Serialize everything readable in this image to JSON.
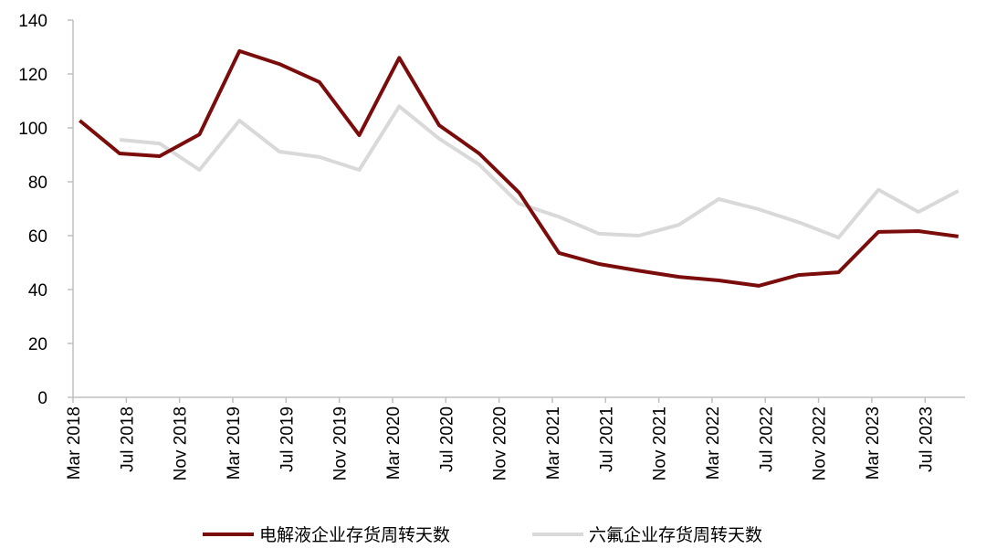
{
  "chart_data": {
    "type": "line",
    "x": [
      "2018-03",
      "2018-06",
      "2018-09",
      "2018-12",
      "2019-03",
      "2019-06",
      "2019-09",
      "2019-12",
      "2020-03",
      "2020-06",
      "2020-09",
      "2020-12",
      "2021-03",
      "2021-06",
      "2021-09",
      "2021-12",
      "2022-03",
      "2022-06",
      "2022-09",
      "2022-12",
      "2023-03",
      "2023-06",
      "2023-09"
    ],
    "series": [
      {
        "name": "电解液企业存货周转天数",
        "color": "#7b0c0c",
        "values": [
          102.7,
          90.5,
          89.5,
          97.6,
          128.5,
          123.7,
          117,
          97.3,
          126,
          101,
          90.5,
          76,
          53.6,
          49.5,
          47,
          44.7,
          43.4,
          41.4,
          45.4,
          46.4,
          61.4,
          61.7,
          59.7
        ]
      },
      {
        "name": "六氟企业存货周转天数",
        "color": "#d9d9d9",
        "values": [
          null,
          95.6,
          94.2,
          84.4,
          102.7,
          91.2,
          89.2,
          84.4,
          108,
          96,
          86.4,
          71.9,
          67,
          60.7,
          60,
          64,
          73.6,
          69.8,
          65,
          59.3,
          77,
          68.8,
          76.6
        ]
      }
    ],
    "xlim": [
      "2018-03",
      "2023-10"
    ],
    "xticks": [
      {
        "value": "2018-03",
        "label": "Mar 2018"
      },
      {
        "value": "2018-07",
        "label": "Jul 2018"
      },
      {
        "value": "2018-11",
        "label": "Nov 2018"
      },
      {
        "value": "2019-03",
        "label": "Mar 2019"
      },
      {
        "value": "2019-07",
        "label": "Jul 2019"
      },
      {
        "value": "2019-11",
        "label": "Nov 2019"
      },
      {
        "value": "2020-03",
        "label": "Mar 2020"
      },
      {
        "value": "2020-07",
        "label": "Jul 2020"
      },
      {
        "value": "2020-11",
        "label": "Nov 2020"
      },
      {
        "value": "2021-03",
        "label": "Mar 2021"
      },
      {
        "value": "2021-07",
        "label": "Jul 2021"
      },
      {
        "value": "2021-11",
        "label": "Nov 2021"
      },
      {
        "value": "2022-03",
        "label": "Mar 2022"
      },
      {
        "value": "2022-07",
        "label": "Jul 2022"
      },
      {
        "value": "2022-11",
        "label": "Nov 2022"
      },
      {
        "value": "2023-03",
        "label": "Mar 2023"
      },
      {
        "value": "2023-07",
        "label": "Jul 2023"
      }
    ],
    "ylim": [
      0,
      140
    ],
    "yticks": [
      0,
      20,
      40,
      60,
      80,
      100,
      120,
      140
    ],
    "legend": "bottom"
  }
}
